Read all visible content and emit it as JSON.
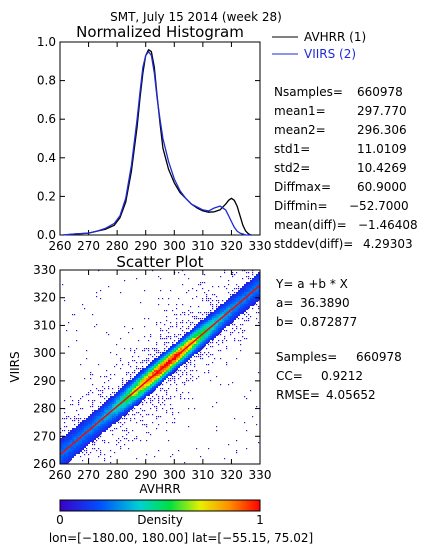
{
  "header": {
    "title": "SMT,  July 15 2014 (week 28)"
  },
  "histogram": {
    "title": "Normalized Histogram",
    "legend": [
      {
        "label": "AVHRR (1)",
        "color": "#000000"
      },
      {
        "label": "VIIRS (2)",
        "color": "#1f2ad6"
      }
    ],
    "stats": [
      {
        "label": "Nsamples=",
        "value": "660978"
      },
      {
        "label": "mean1=",
        "value": "297.770"
      },
      {
        "label": "mean2=",
        "value": "296.306"
      },
      {
        "label": "std1=",
        "value": "11.0109"
      },
      {
        "label": "std2=",
        "value": "10.4269"
      },
      {
        "label": "Diffmax=",
        "value": "60.9000"
      },
      {
        "label": "Diffmin=",
        "value": "−52.7000"
      },
      {
        "label": "mean(diff)=",
        "value": "−1.46408"
      },
      {
        "label": "stddev(diff)=",
        "value": "4.29303"
      }
    ]
  },
  "scatter": {
    "title": "Scatter Plot",
    "xlabel": "AVHRR",
    "ylabel": "VIIRS",
    "fit_lines": [
      {
        "label": "Y=  a  +b  * X",
        "value": ""
      },
      {
        "label": "a=",
        "value": "36.3890"
      },
      {
        "label": "b=",
        "value": "0.872877"
      }
    ],
    "stats": [
      {
        "label": "Samples=",
        "value": "660978"
      },
      {
        "label": "CC=",
        "value": "0.9212"
      },
      {
        "label": "RMSE=",
        "value": "4.05652"
      }
    ],
    "colorbar": {
      "title": "Density",
      "min_label": "0",
      "max_label": "1"
    },
    "footer": "lon=[−180.00, 180.00] lat=[−55.15, 75.02]"
  },
  "chart_data": [
    {
      "type": "line",
      "title": "Normalized Histogram",
      "xlim": [
        260,
        330
      ],
      "ylim": [
        0,
        1.0
      ],
      "xticks": [
        260,
        270,
        280,
        290,
        300,
        310,
        320,
        330
      ],
      "yticks": [
        0.0,
        0.2,
        0.4,
        0.6,
        0.8,
        1.0
      ],
      "ytick_labels": [
        "0.0",
        "0.2",
        "0.4",
        "0.6",
        "0.8",
        "1.0"
      ],
      "series": [
        {
          "name": "AVHRR (1)",
          "color": "#000000",
          "x": [
            261,
            265,
            270,
            273,
            276,
            279,
            281,
            283,
            285,
            287,
            288,
            289,
            290,
            291,
            292,
            293,
            294,
            295,
            296,
            298,
            300,
            302,
            304,
            306,
            308,
            310,
            312,
            314,
            316,
            318,
            319,
            320,
            321,
            322,
            323,
            324,
            325,
            326,
            327
          ],
          "y": [
            0.0,
            0.005,
            0.01,
            0.02,
            0.03,
            0.05,
            0.09,
            0.17,
            0.33,
            0.56,
            0.71,
            0.84,
            0.93,
            0.96,
            0.95,
            0.87,
            0.72,
            0.58,
            0.45,
            0.34,
            0.27,
            0.22,
            0.19,
            0.16,
            0.14,
            0.125,
            0.118,
            0.12,
            0.13,
            0.16,
            0.18,
            0.19,
            0.18,
            0.15,
            0.1,
            0.05,
            0.02,
            0.005,
            0.0
          ]
        },
        {
          "name": "VIIRS (2)",
          "color": "#1f2ad6",
          "x": [
            261,
            265,
            270,
            273,
            276,
            279,
            281,
            283,
            285,
            287,
            288,
            289,
            290,
            291,
            292,
            293,
            294,
            295,
            296,
            298,
            300,
            302,
            304,
            306,
            308,
            310,
            312,
            314,
            316,
            318,
            319,
            320,
            321,
            322,
            323,
            324,
            325,
            326,
            327
          ],
          "y": [
            0.0,
            0.005,
            0.01,
            0.02,
            0.035,
            0.06,
            0.1,
            0.19,
            0.36,
            0.6,
            0.74,
            0.87,
            0.93,
            0.95,
            0.93,
            0.84,
            0.71,
            0.6,
            0.5,
            0.38,
            0.29,
            0.23,
            0.19,
            0.16,
            0.145,
            0.13,
            0.125,
            0.14,
            0.15,
            0.13,
            0.1,
            0.07,
            0.04,
            0.02,
            0.01,
            0.005,
            0.0,
            0.0,
            0.0
          ]
        }
      ]
    },
    {
      "type": "heatmap",
      "title": "Scatter Plot",
      "xlabel": "AVHRR",
      "ylabel": "VIIRS",
      "xlim": [
        260,
        330
      ],
      "ylim": [
        260,
        330
      ],
      "xticks": [
        260,
        270,
        280,
        290,
        300,
        310,
        320,
        330
      ],
      "yticks": [
        260,
        270,
        280,
        290,
        300,
        310,
        320,
        330
      ],
      "fit": {
        "a": 36.389,
        "b": 0.872877
      },
      "density_range": [
        0,
        1
      ]
    }
  ]
}
